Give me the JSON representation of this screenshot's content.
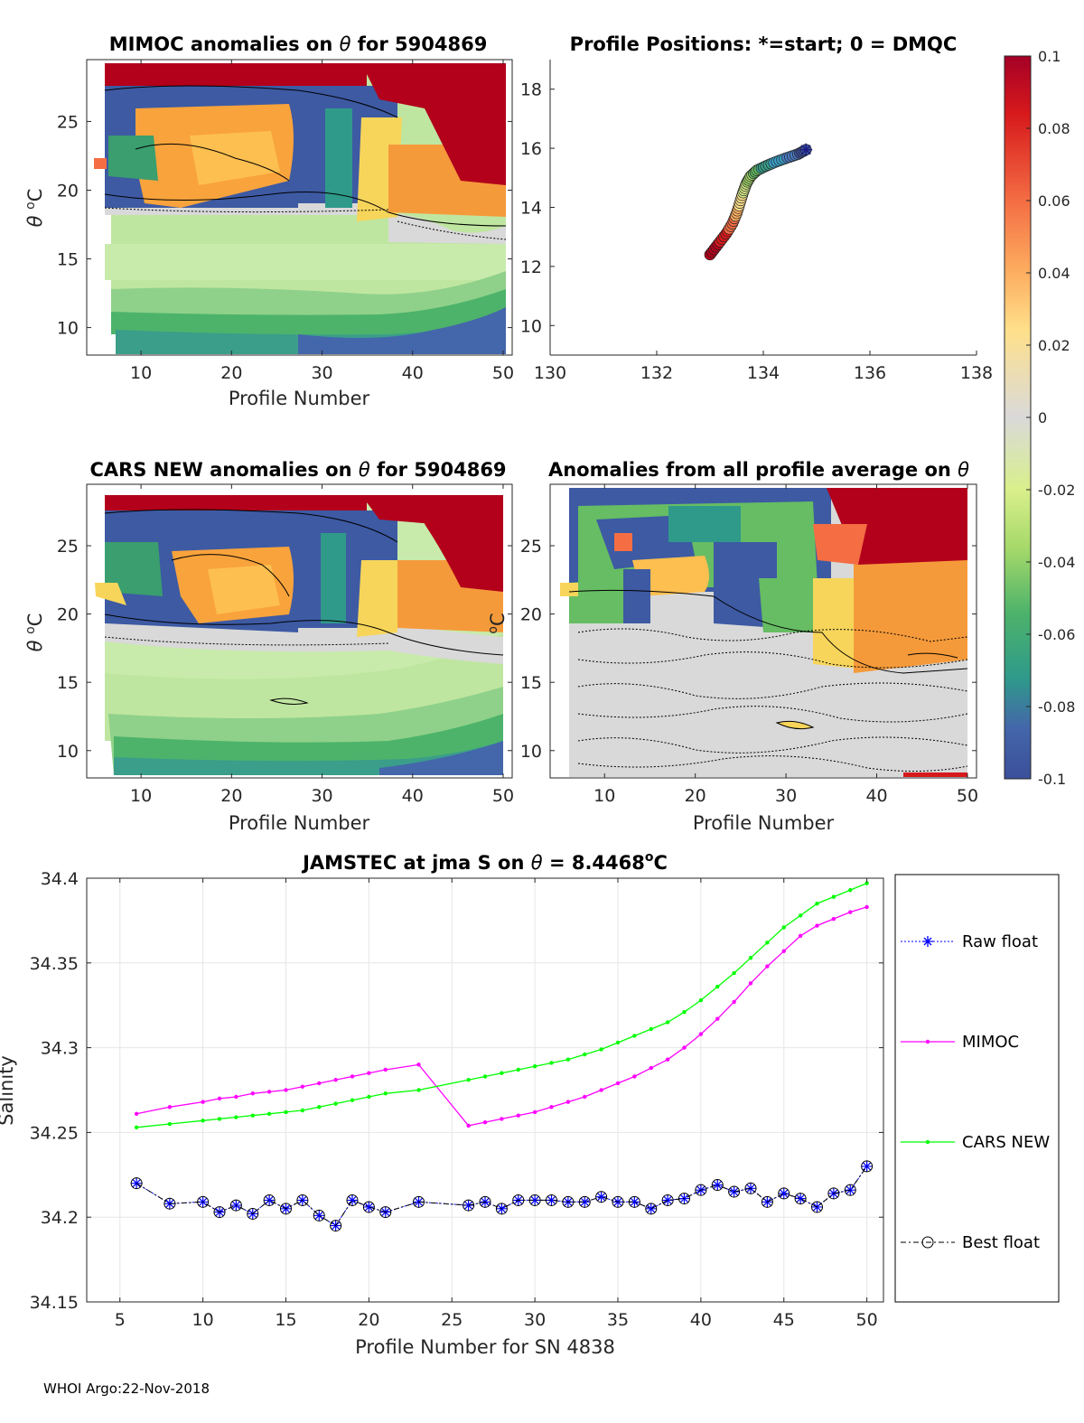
{
  "chart_data": [
    {
      "type": "heatmap",
      "title_prefix": "MIMOC anomalies on",
      "title_symbol": "θ",
      "title_suffix": " for 5904869",
      "xlabel": "Profile Number",
      "ylabel_symbol": "θ",
      "ylabel_unit": "C",
      "xlim": [
        4,
        51
      ],
      "ylim": [
        8,
        29.5
      ],
      "xticks": [
        "10",
        "20",
        "30",
        "40",
        "50"
      ],
      "yticks": [
        "10",
        "15",
        "20",
        "25"
      ]
    },
    {
      "type": "scatter",
      "title": "Profile Positions: *=start; 0 = DMQC",
      "xlim": [
        130,
        138
      ],
      "ylim": [
        9,
        19
      ],
      "xticks": [
        "130",
        "132",
        "134",
        "136",
        "138"
      ],
      "yticks": [
        "10",
        "12",
        "14",
        "16",
        "18"
      ],
      "track_lon": [
        133.0,
        133.15,
        133.3,
        133.42,
        133.5,
        133.56,
        133.62,
        133.68,
        133.76,
        133.88,
        134.05,
        134.25,
        134.45,
        134.65,
        134.8
      ],
      "track_lat": [
        12.4,
        12.75,
        13.1,
        13.45,
        13.8,
        14.15,
        14.5,
        14.8,
        15.05,
        15.25,
        15.4,
        15.55,
        15.68,
        15.8,
        15.95
      ]
    },
    {
      "type": "heatmap",
      "title_prefix": "CARS NEW anomalies on",
      "title_symbol": "θ",
      "title_suffix": "for 5904869",
      "xlabel": "Profile Number",
      "ylabel_symbol": "θ",
      "ylabel_unit": "C",
      "xlim": [
        4,
        51
      ],
      "ylim": [
        8,
        29.5
      ],
      "xticks": [
        "10",
        "20",
        "30",
        "40",
        "50"
      ],
      "yticks": [
        "10",
        "15",
        "20",
        "25"
      ]
    },
    {
      "type": "heatmap",
      "title_prefix": "Anomalies from all profile average on",
      "title_symbol": "θ",
      "xlabel": "Profile Number",
      "ylabel_unit": "C",
      "xlim": [
        4,
        51
      ],
      "ylim": [
        8,
        29.5
      ],
      "xticks": [
        "10",
        "20",
        "30",
        "40",
        "50"
      ],
      "yticks": [
        "10",
        "15",
        "20",
        "25"
      ]
    },
    {
      "type": "line",
      "title_prefix": "JAMSTEC at jma S on",
      "title_symbol": "θ",
      "title_value": "= 8.4468",
      "title_degree": "o",
      "title_unit": "C",
      "xlabel": "Profile Number for SN 4838",
      "ylabel": "Salinity",
      "xlim": [
        3,
        51
      ],
      "ylim": [
        34.15,
        34.4
      ],
      "xticks": [
        "5",
        "10",
        "15",
        "20",
        "25",
        "30",
        "35",
        "40",
        "45",
        "50"
      ],
      "yticks": [
        "34.15",
        "34.2",
        "34.25",
        "34.3",
        "34.35",
        "34.4"
      ],
      "legend": [
        "Raw float",
        "MIMOC",
        "CARS NEW",
        "Best float"
      ],
      "series": [
        {
          "name": "MIMOC",
          "color": "#ff00ff",
          "x": [
            6,
            8,
            10,
            11,
            12,
            13,
            14,
            15,
            16,
            17,
            18,
            19,
            20,
            21,
            23,
            26,
            27,
            28,
            29,
            30,
            31,
            32,
            33,
            34,
            35,
            36,
            37,
            38,
            39,
            40,
            41,
            42,
            43,
            44,
            45,
            46,
            47,
            48,
            49,
            50
          ],
          "y": [
            34.261,
            34.265,
            34.268,
            34.27,
            34.271,
            34.273,
            34.274,
            34.275,
            34.277,
            34.279,
            34.281,
            34.283,
            34.285,
            34.287,
            34.29,
            34.254,
            34.256,
            34.258,
            34.26,
            34.262,
            34.265,
            34.268,
            34.271,
            34.275,
            34.279,
            34.283,
            34.288,
            34.293,
            34.3,
            34.308,
            34.317,
            34.327,
            34.338,
            34.348,
            34.357,
            34.366,
            34.372,
            34.376,
            34.38,
            34.383
          ]
        },
        {
          "name": "CARS NEW",
          "color": "#00ff00",
          "x": [
            6,
            8,
            10,
            11,
            12,
            13,
            14,
            15,
            16,
            17,
            18,
            19,
            20,
            21,
            23,
            26,
            27,
            28,
            29,
            30,
            31,
            32,
            33,
            34,
            35,
            36,
            37,
            38,
            39,
            40,
            41,
            42,
            43,
            44,
            45,
            46,
            47,
            48,
            49,
            50
          ],
          "y": [
            34.253,
            34.255,
            34.257,
            34.258,
            34.259,
            34.26,
            34.261,
            34.262,
            34.263,
            34.265,
            34.267,
            34.269,
            34.271,
            34.273,
            34.275,
            34.281,
            34.283,
            34.285,
            34.287,
            34.289,
            34.291,
            34.293,
            34.296,
            34.299,
            34.303,
            34.307,
            34.311,
            34.315,
            34.321,
            34.328,
            34.336,
            34.344,
            34.353,
            34.362,
            34.371,
            34.378,
            34.385,
            34.389,
            34.393,
            34.397
          ]
        },
        {
          "name": "Raw float",
          "color": "#0000ff",
          "x": [
            6,
            8,
            10,
            11,
            12,
            13,
            14,
            15,
            16,
            17,
            18,
            19,
            20,
            21,
            23,
            26,
            27,
            28,
            29,
            30,
            31,
            32,
            33,
            34,
            35,
            36,
            37,
            38,
            39,
            40,
            41,
            42,
            43,
            44,
            45,
            46,
            47,
            48,
            49,
            50
          ],
          "y": [
            34.22,
            34.208,
            34.209,
            34.203,
            34.207,
            34.202,
            34.21,
            34.205,
            34.21,
            34.201,
            34.195,
            34.21,
            34.206,
            34.203,
            34.209,
            34.207,
            34.209,
            34.205,
            34.21,
            34.21,
            34.21,
            34.209,
            34.209,
            34.212,
            34.209,
            34.209,
            34.205,
            34.21,
            34.211,
            34.216,
            34.219,
            34.215,
            34.217,
            34.209,
            34.214,
            34.211,
            34.206,
            34.214,
            34.216,
            34.23
          ]
        },
        {
          "name": "Best float",
          "color": "#000000",
          "x": [
            6,
            8,
            10,
            11,
            12,
            13,
            14,
            15,
            16,
            17,
            18,
            19,
            20,
            21,
            23,
            26,
            27,
            28,
            29,
            30,
            31,
            32,
            33,
            34,
            35,
            36,
            37,
            38,
            39,
            40,
            41,
            42,
            43,
            44,
            45,
            46,
            47,
            48,
            49,
            50
          ],
          "y": [
            34.22,
            34.208,
            34.209,
            34.203,
            34.207,
            34.202,
            34.21,
            34.205,
            34.21,
            34.201,
            34.195,
            34.21,
            34.206,
            34.203,
            34.209,
            34.207,
            34.209,
            34.205,
            34.21,
            34.21,
            34.21,
            34.209,
            34.209,
            34.212,
            34.209,
            34.209,
            34.205,
            34.21,
            34.211,
            34.216,
            34.219,
            34.215,
            34.217,
            34.209,
            34.214,
            34.211,
            34.206,
            34.214,
            34.216,
            34.23
          ]
        }
      ]
    }
  ],
  "colorbar": {
    "ticks": [
      "0.1",
      "0.08",
      "0.06",
      "0.04",
      "0.02",
      "0",
      "-0.02",
      "-0.04",
      "-0.06",
      "-0.08",
      "-0.1"
    ],
    "colors": [
      "#b3001b",
      "#d7191c",
      "#f46d43",
      "#fdae61",
      "#fee08b",
      "#d9d9d9",
      "#d9ef8b",
      "#a6d96a",
      "#66bd63",
      "#3a9e6e",
      "#4466aa",
      "#3b4f9a"
    ]
  },
  "footer": "WHOI Argo:22-Nov-2018"
}
